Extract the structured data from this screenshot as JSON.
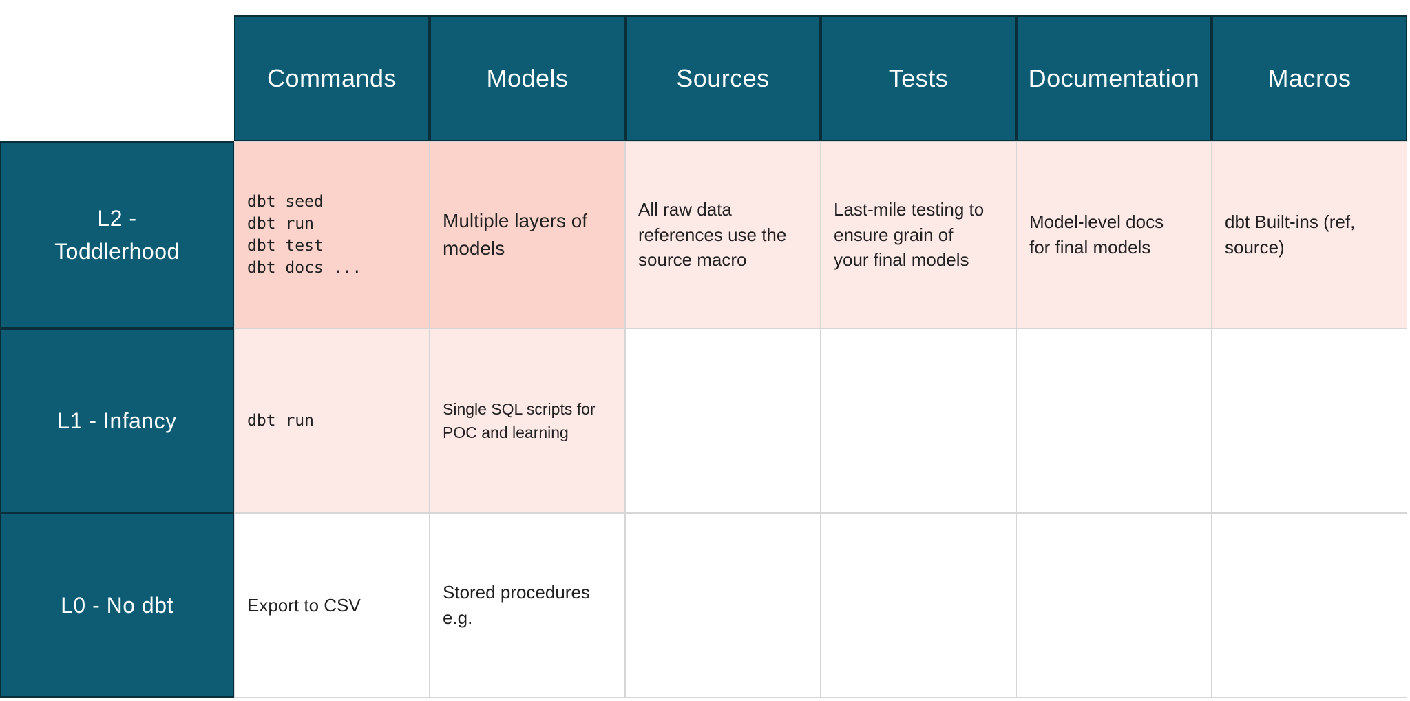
{
  "table": {
    "column_headers": [
      {
        "label": "Commands"
      },
      {
        "label": "Models"
      },
      {
        "label": "Sources"
      },
      {
        "label": "Tests"
      },
      {
        "label": "Documentation"
      },
      {
        "label": "Macros"
      }
    ],
    "rows": [
      {
        "label": "L2 -\nToddlerhood",
        "cells": [
          {
            "text": "dbt seed\ndbt run\ndbt test\ndbt docs ..."
          },
          {
            "text": "Multiple layers of\nmodels"
          },
          {
            "text": "All raw data\nreferences use the\nsource macro"
          },
          {
            "text": "Last-mile testing to\nensure grain of\nyour final models"
          },
          {
            "text": "Model-level docs\nfor final models"
          },
          {
            "text": "dbt Built-ins (ref,\nsource)"
          }
        ]
      },
      {
        "label": "L1 - Infancy",
        "cells": [
          {
            "text": "dbt run"
          },
          {
            "text": "Single SQL scripts for\nPOC and learning"
          },
          {
            "text": ""
          },
          {
            "text": ""
          },
          {
            "text": ""
          },
          {
            "text": ""
          }
        ]
      },
      {
        "label": "L0 - No dbt",
        "cells": [
          {
            "text": "Export to CSV"
          },
          {
            "text": "Stored procedures\ne.g."
          },
          {
            "text": ""
          },
          {
            "text": ""
          },
          {
            "text": ""
          },
          {
            "text": ""
          }
        ]
      }
    ],
    "colors": {
      "header_teal": "#0d5c74",
      "header_border_dark": "#0a2f3b",
      "cell_pink_strong": "#fbd3ca",
      "cell_pink_light": "#fde9e6",
      "grid_line_gray": "#d6d6d6",
      "body_text": "#202020",
      "header_text": "#fdfefe"
    }
  }
}
